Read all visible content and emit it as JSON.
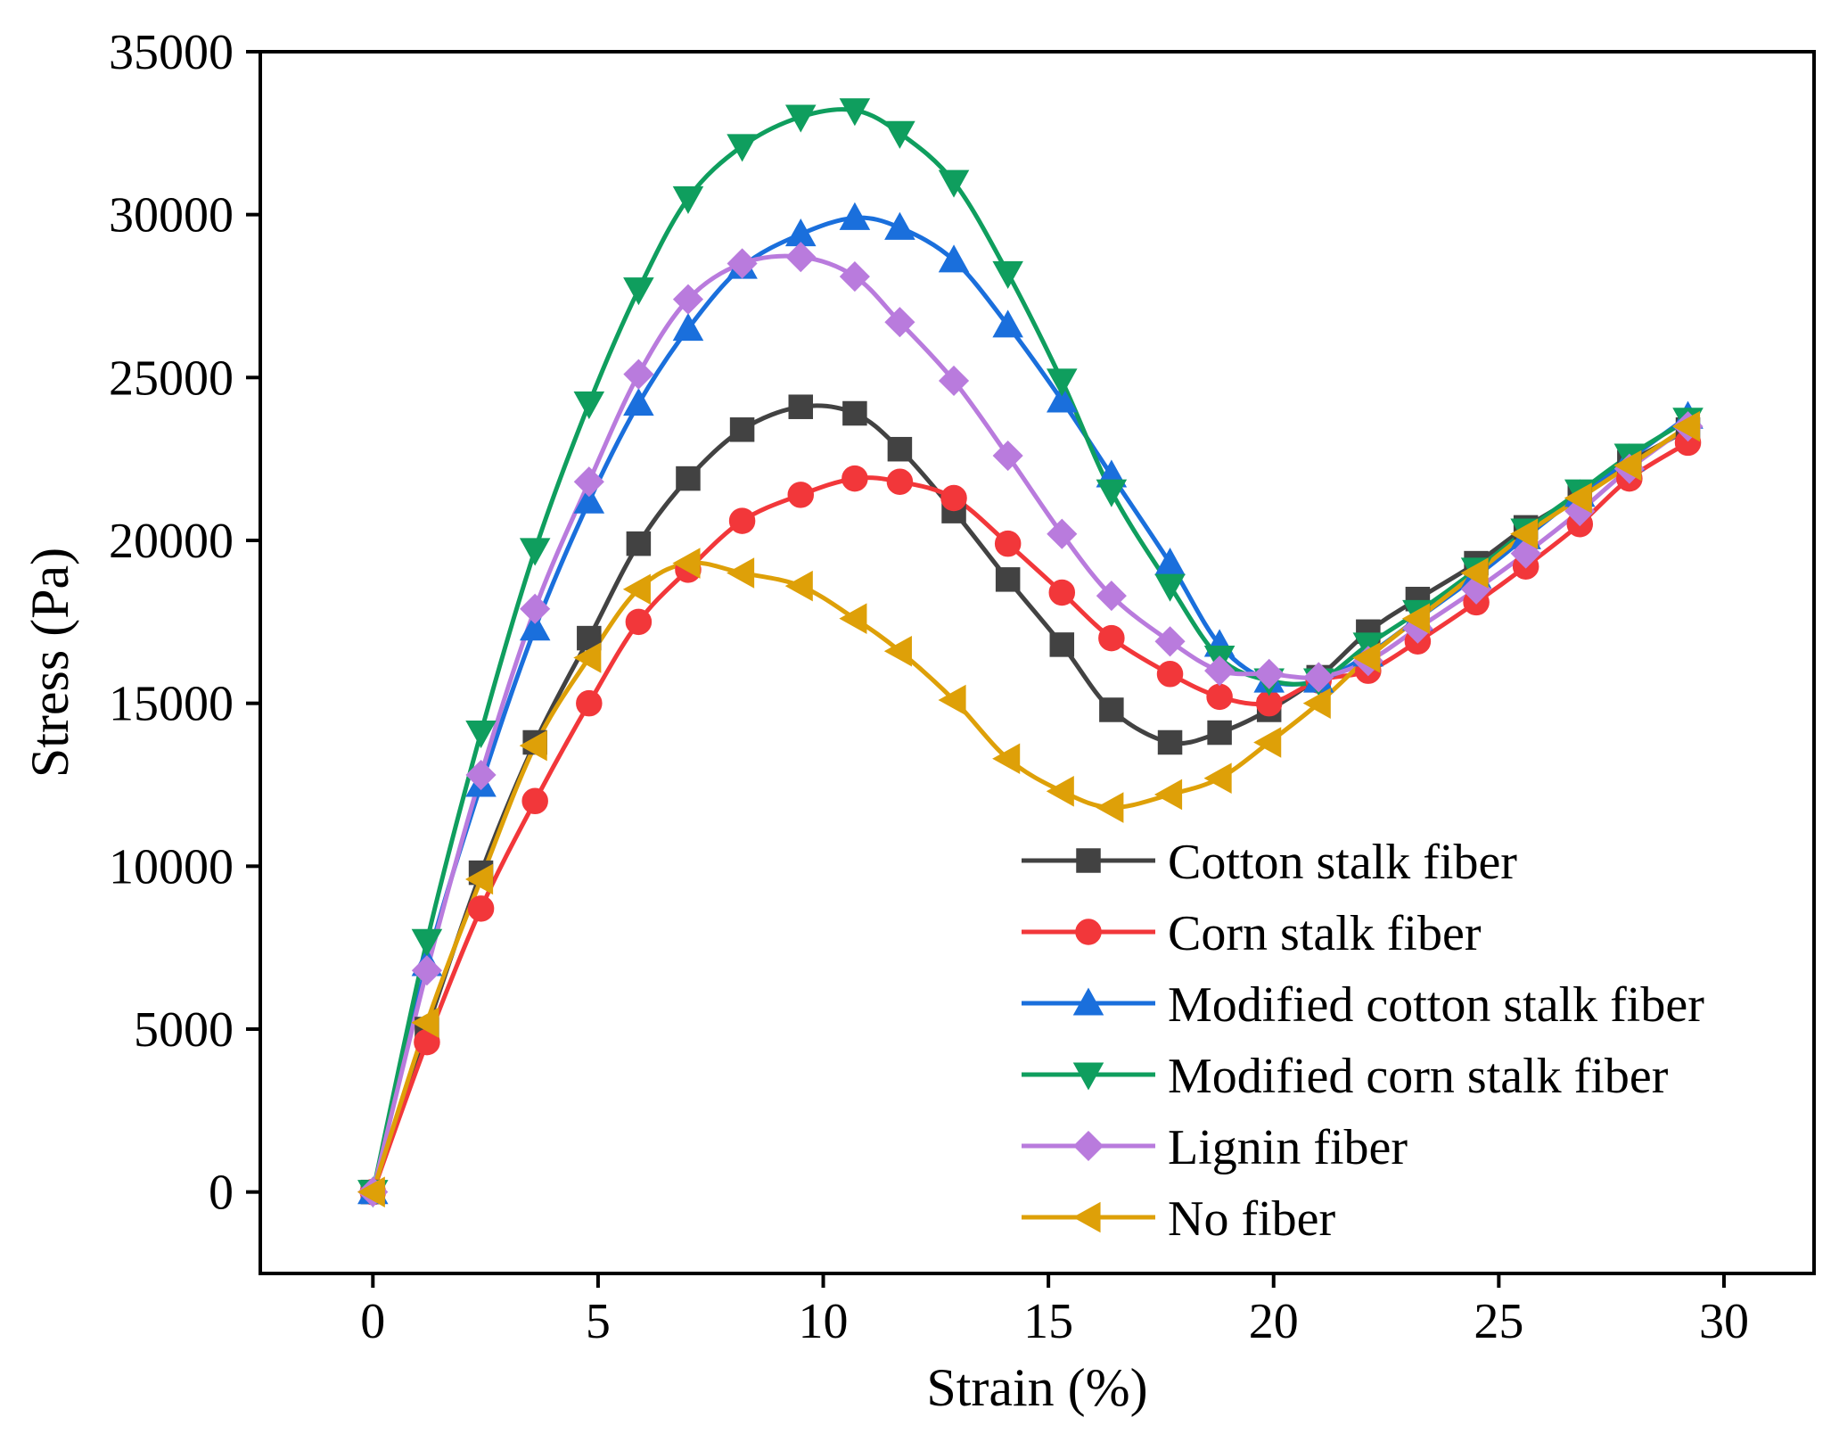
{
  "chart_data": {
    "type": "line",
    "title": "",
    "xlabel": "Strain (%)",
    "ylabel": "Stress (Pa)",
    "xlim": [
      -2.5,
      32
    ],
    "ylim": [
      -2500,
      35000
    ],
    "xticks": [
      0,
      5,
      10,
      15,
      20,
      25,
      30
    ],
    "xtick_labels": [
      "0",
      "5",
      "10",
      "15",
      "20",
      "25",
      "30"
    ],
    "yticks": [
      0,
      5000,
      10000,
      15000,
      20000,
      25000,
      30000,
      35000
    ],
    "ytick_labels": [
      "0",
      "5000",
      "10000",
      "15000",
      "20000",
      "25000",
      "30000",
      "35000"
    ],
    "grid": false,
    "legend_position": "bottom-right",
    "x": [
      0,
      1.2,
      2.4,
      3.6,
      4.8,
      5.9,
      7.0,
      8.2,
      9.5,
      10.7,
      11.7,
      12.9,
      14.1,
      15.3,
      16.4,
      17.7,
      18.8,
      19.9,
      21.0,
      22.1,
      23.2,
      24.5,
      25.6,
      26.8,
      27.9,
      29.2
    ],
    "series": [
      {
        "name": "Cotton stalk fiber",
        "color": "#424242",
        "marker": "square",
        "values": [
          0,
          5000,
          9800,
          13800,
          17000,
          19900,
          21900,
          23400,
          24100,
          23900,
          22800,
          20900,
          18800,
          16800,
          14800,
          13800,
          14100,
          14800,
          15800,
          17200,
          18200,
          19300,
          20400,
          21400,
          22400,
          23400
        ]
      },
      {
        "name": "Corn stalk fiber",
        "color": "#f2373a",
        "marker": "circle",
        "values": [
          0,
          4600,
          8700,
          12000,
          15000,
          17500,
          19100,
          20600,
          21400,
          21900,
          21800,
          21300,
          19900,
          18400,
          17000,
          15900,
          15200,
          15000,
          15700,
          16000,
          16900,
          18100,
          19200,
          20500,
          21900,
          23000
        ]
      },
      {
        "name": "Modified cotton stalk fiber",
        "color": "#1a6fdc",
        "marker": "triangle-up",
        "values": [
          0,
          7000,
          12500,
          17300,
          21200,
          24200,
          26500,
          28400,
          29400,
          29900,
          29600,
          28600,
          26600,
          24300,
          22000,
          19300,
          16800,
          15700,
          15700,
          16500,
          17600,
          18900,
          20100,
          21400,
          22500,
          23800
        ]
      },
      {
        "name": "Modified corn stalk fiber",
        "color": "#0f9e5e",
        "marker": "triangle-down",
        "values": [
          0,
          7700,
          14100,
          19700,
          24200,
          27700,
          30500,
          32100,
          33000,
          33200,
          32500,
          31000,
          28200,
          24900,
          21500,
          18600,
          16400,
          15700,
          15700,
          16800,
          17800,
          19100,
          20300,
          21500,
          22600,
          23700
        ]
      },
      {
        "name": "Lignin fiber",
        "color": "#b97bdd",
        "marker": "diamond",
        "values": [
          0,
          6800,
          12800,
          17900,
          21800,
          25100,
          27400,
          28500,
          28700,
          28100,
          26700,
          24900,
          22600,
          20200,
          18300,
          16900,
          16000,
          15900,
          15800,
          16300,
          17300,
          18500,
          19600,
          20900,
          22200,
          23500
        ]
      },
      {
        "name": "No fiber",
        "color": "#dea008",
        "marker": "triangle-left",
        "values": [
          0,
          5200,
          9600,
          13700,
          16400,
          18500,
          19300,
          19000,
          18600,
          17600,
          16600,
          15100,
          13300,
          12300,
          11800,
          12200,
          12700,
          13800,
          15000,
          16400,
          17600,
          19000,
          20200,
          21300,
          22300,
          23500
        ]
      }
    ]
  }
}
